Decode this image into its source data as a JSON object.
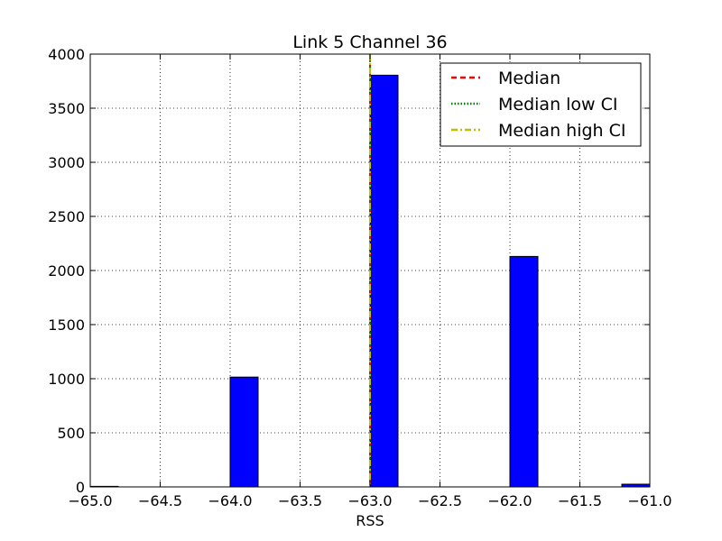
{
  "chart_data": {
    "type": "bar",
    "title": "Link 5 Channel 36",
    "xlabel": "RSS",
    "ylabel": "",
    "xlim": [
      -65.0,
      -61.0
    ],
    "ylim": [
      0,
      4000
    ],
    "x_ticks": [
      -65.0,
      -64.5,
      -64.0,
      -63.5,
      -63.0,
      -62.5,
      -62.0,
      -61.5,
      -61.0
    ],
    "x_tick_labels": [
      "−65.0",
      "−64.5",
      "−64.0",
      "−63.5",
      "−63.0",
      "−62.5",
      "−62.0",
      "−61.5",
      "−61.0"
    ],
    "y_ticks": [
      0,
      500,
      1000,
      1500,
      2000,
      2500,
      3000,
      3500,
      4000
    ],
    "y_tick_labels": [
      "0",
      "500",
      "1000",
      "1500",
      "2000",
      "2500",
      "3000",
      "3500",
      "4000"
    ],
    "grid": true,
    "bar_color": "#0000ff",
    "bars": [
      {
        "x_start": -65.0,
        "x_end": -64.8,
        "value": 5
      },
      {
        "x_start": -64.0,
        "x_end": -63.8,
        "value": 1015
      },
      {
        "x_start": -63.0,
        "x_end": -62.8,
        "value": 3805
      },
      {
        "x_start": -62.0,
        "x_end": -61.8,
        "value": 2130
      },
      {
        "x_start": -61.2,
        "x_end": -61.0,
        "value": 25
      }
    ],
    "lines": [
      {
        "name": "Median",
        "x": -63.0,
        "color": "#ff0000",
        "style": "dashed"
      },
      {
        "name": "Median low CI",
        "x": -63.0,
        "color": "#008000",
        "style": "dotted"
      },
      {
        "name": "Median high CI",
        "x": -63.0,
        "color": "#bfbf00",
        "style": "dashdot"
      }
    ],
    "legend": {
      "placement": "top-right",
      "entries": [
        "Median",
        "Median low CI",
        "Median high CI"
      ]
    }
  }
}
